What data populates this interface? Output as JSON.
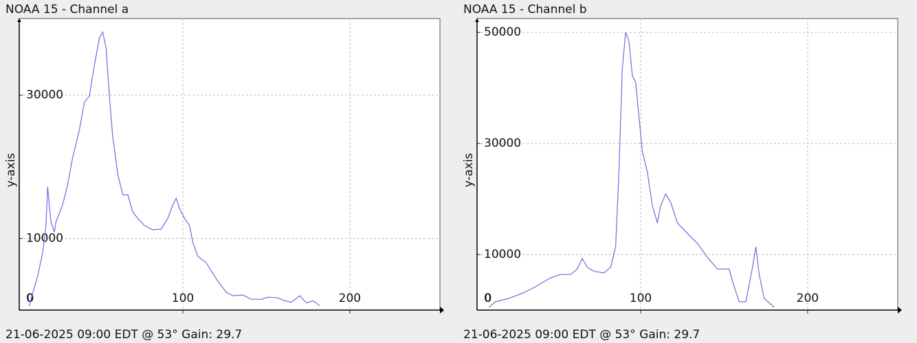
{
  "chart_data": [
    {
      "type": "line",
      "title": "NOAA 15 - Channel a",
      "y_label": "y-axis",
      "caption": "21-06-2025 09:00 EDT @ 53° Gain: 29.7",
      "color": "#6a6ae0",
      "grid": true,
      "xlim": [
        2,
        254
      ],
      "xticks": [
        0,
        100,
        200
      ],
      "ylim": [
        0,
        40700
      ],
      "yticks": [
        0,
        10000,
        30000
      ],
      "x": [
        8,
        10,
        13,
        16,
        18,
        19,
        20,
        21,
        23,
        24,
        28,
        31,
        34,
        38,
        41,
        44,
        47,
        50,
        52,
        54,
        56,
        58,
        61,
        64,
        67,
        70,
        73,
        77,
        82,
        87,
        91,
        94,
        96,
        98,
        101,
        104,
        106,
        109,
        114,
        118,
        122,
        126,
        130,
        136,
        141,
        147,
        151,
        157,
        161,
        165,
        170,
        174,
        178,
        182
      ],
      "values": [
        600,
        2300,
        4700,
        8000,
        11800,
        17200,
        14700,
        12300,
        10900,
        12300,
        14700,
        17500,
        21300,
        25100,
        29000,
        29900,
        34200,
        38000,
        38800,
        36600,
        29900,
        24200,
        19000,
        16100,
        16100,
        13700,
        12800,
        11800,
        11200,
        11300,
        12800,
        14700,
        15600,
        14200,
        12800,
        11800,
        9400,
        7500,
        6600,
        5100,
        3700,
        2500,
        2000,
        2100,
        1500,
        1500,
        1800,
        1700,
        1300,
        1100,
        2000,
        1000,
        1300,
        600
      ]
    },
    {
      "type": "line",
      "title": "NOAA 15 - Channel b",
      "y_label": "y-axis",
      "caption": "21-06-2025 09:00 EDT @ 53° Gain: 29.7",
      "color": "#6a6ae0",
      "grid": true,
      "xlim": [
        2,
        254
      ],
      "xticks": [
        0,
        100,
        200
      ],
      "ylim": [
        0,
        52500
      ],
      "yticks": [
        0,
        10000,
        30000,
        50000
      ],
      "x": [
        9,
        13,
        21,
        29,
        37,
        46,
        52,
        58,
        62,
        65,
        68,
        72,
        78,
        82,
        85,
        87,
        89,
        91,
        93,
        95,
        97,
        99,
        101,
        104,
        107,
        110,
        112,
        115,
        118,
        122,
        128,
        134,
        140,
        146,
        153,
        155,
        159,
        163,
        167,
        169,
        171,
        174,
        180
      ],
      "values": [
        500,
        1500,
        2100,
        3000,
        4200,
        5800,
        6400,
        6400,
        7400,
        9300,
        7700,
        7000,
        6700,
        7700,
        11400,
        24900,
        43500,
        50000,
        48400,
        42200,
        41000,
        34800,
        28600,
        24900,
        18800,
        15700,
        18800,
        20900,
        19400,
        15700,
        13800,
        12000,
        9500,
        7400,
        7400,
        5200,
        1500,
        1500,
        7700,
        11400,
        6400,
        2100,
        500
      ]
    }
  ]
}
